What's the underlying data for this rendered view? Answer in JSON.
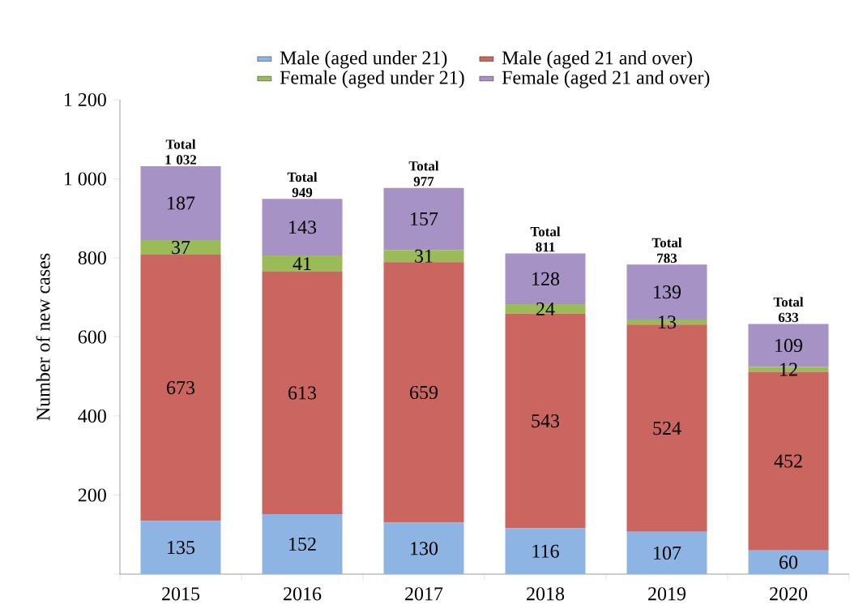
{
  "chart_data": {
    "type": "bar",
    "stacked": true,
    "ylabel": "Number of new cases",
    "categories": [
      "2015",
      "2016",
      "2017",
      "2018",
      "2019",
      "2020"
    ],
    "series": [
      {
        "name": "Male (aged under 21)",
        "color": "#8eb4e3",
        "values": [
          135,
          152,
          130,
          116,
          107,
          60
        ]
      },
      {
        "name": "Male (aged 21 and over)",
        "color": "#cb6560",
        "values": [
          673,
          613,
          659,
          543,
          524,
          452
        ]
      },
      {
        "name": "Female (aged under 21)",
        "color": "#9bbb59",
        "values": [
          37,
          41,
          31,
          24,
          13,
          12
        ]
      },
      {
        "name": "Female (aged 21 and over)",
        "color": "#a692c4",
        "values": [
          187,
          143,
          157,
          128,
          139,
          109
        ]
      }
    ],
    "totals": [
      "Total 1 032",
      "Total 949",
      "Total 977",
      "Total 811",
      "Total 783",
      "Total 633"
    ],
    "data_labels": true,
    "legend": "top",
    "ylim": [
      0,
      1200
    ],
    "yticks": [
      {
        "value": 0,
        "label": null
      },
      200,
      400,
      600,
      800,
      {
        "value": 1000,
        "label": "1 000"
      },
      {
        "value": 1200,
        "label": "1 200"
      }
    ]
  }
}
